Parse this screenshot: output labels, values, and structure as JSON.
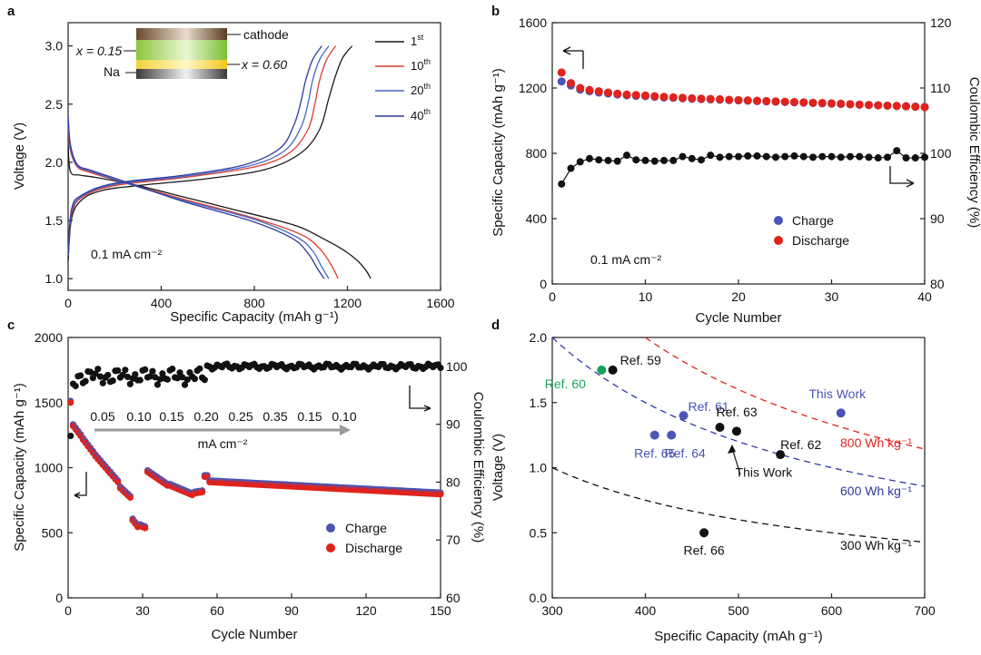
{
  "colors": {
    "first": "#1a1a1a",
    "c10": "#e23a2a",
    "c20": "#4466c4",
    "c40": "#2f3aa0",
    "charge": "#4a55b6",
    "discharge": "#e0231c",
    "ce": "#111111",
    "green": "#1aa25f",
    "gray_arrow": "#9a9a9a"
  },
  "panel_labels": {
    "a": "a",
    "b": "b",
    "c": "c",
    "d": "d"
  },
  "chart_data": [
    {
      "panel": "a",
      "type": "line",
      "xlabel": "Specific Capacity (mAh g⁻¹)",
      "ylabel": "Voltage (V)",
      "xlim": [
        0,
        1600
      ],
      "ylim": [
        0.9,
        3.2
      ],
      "xticks": [
        0,
        400,
        800,
        1200,
        1600
      ],
      "yticks": [
        1.0,
        1.5,
        2.0,
        2.5,
        3.0
      ],
      "annotation": "0.1 mA cm⁻²",
      "inset": {
        "cathode": "cathode",
        "na": "Na",
        "x_left": "x = 0.15",
        "x_right": "x = 0.60"
      },
      "legend": [
        {
          "base": "1",
          "sup": "st"
        },
        {
          "base": "10",
          "sup": "th"
        },
        {
          "base": "20",
          "sup": "th"
        },
        {
          "base": "40",
          "sup": "th"
        }
      ],
      "series": [
        {
          "name": "1st",
          "discharge": [
            [
              0,
              2.15
            ],
            [
              10,
              1.92
            ],
            [
              50,
              1.89
            ],
            [
              120,
              1.87
            ],
            [
              300,
              1.8
            ],
            [
              500,
              1.7
            ],
            [
              700,
              1.6
            ],
            [
              900,
              1.5
            ],
            [
              1000,
              1.44
            ],
            [
              1100,
              1.34
            ],
            [
              1180,
              1.25
            ],
            [
              1240,
              1.16
            ],
            [
              1280,
              1.07
            ],
            [
              1300,
              1.0
            ]
          ],
          "charge": [
            [
              0,
              1.15
            ],
            [
              15,
              1.52
            ],
            [
              60,
              1.68
            ],
            [
              150,
              1.76
            ],
            [
              300,
              1.8
            ],
            [
              600,
              1.86
            ],
            [
              850,
              1.94
            ],
            [
              1000,
              2.08
            ],
            [
              1080,
              2.28
            ],
            [
              1120,
              2.55
            ],
            [
              1150,
              2.75
            ],
            [
              1180,
              2.9
            ],
            [
              1220,
              3.0
            ]
          ]
        },
        {
          "name": "10th",
          "discharge": [
            [
              0,
              2.3
            ],
            [
              10,
              2.1
            ],
            [
              40,
              1.96
            ],
            [
              100,
              1.91
            ],
            [
              250,
              1.82
            ],
            [
              500,
              1.68
            ],
            [
              800,
              1.52
            ],
            [
              1000,
              1.38
            ],
            [
              1080,
              1.26
            ],
            [
              1130,
              1.12
            ],
            [
              1160,
              1.0
            ]
          ],
          "charge": [
            [
              0,
              1.2
            ],
            [
              15,
              1.55
            ],
            [
              60,
              1.7
            ],
            [
              200,
              1.8
            ],
            [
              500,
              1.87
            ],
            [
              800,
              1.96
            ],
            [
              950,
              2.08
            ],
            [
              1030,
              2.28
            ],
            [
              1060,
              2.5
            ],
            [
              1080,
              2.7
            ],
            [
              1110,
              2.88
            ],
            [
              1150,
              3.0
            ]
          ]
        },
        {
          "name": "20th",
          "discharge": [
            [
              0,
              2.35
            ],
            [
              10,
              2.12
            ],
            [
              40,
              1.97
            ],
            [
              100,
              1.92
            ],
            [
              250,
              1.82
            ],
            [
              500,
              1.67
            ],
            [
              800,
              1.51
            ],
            [
              980,
              1.36
            ],
            [
              1050,
              1.24
            ],
            [
              1090,
              1.1
            ],
            [
              1120,
              1.0
            ]
          ],
          "charge": [
            [
              0,
              1.2
            ],
            [
              15,
              1.57
            ],
            [
              60,
              1.71
            ],
            [
              200,
              1.81
            ],
            [
              500,
              1.88
            ],
            [
              780,
              1.97
            ],
            [
              930,
              2.1
            ],
            [
              1000,
              2.3
            ],
            [
              1030,
              2.5
            ],
            [
              1050,
              2.7
            ],
            [
              1080,
              2.88
            ],
            [
              1120,
              3.0
            ]
          ]
        },
        {
          "name": "40th",
          "discharge": [
            [
              0,
              2.4
            ],
            [
              10,
              2.15
            ],
            [
              40,
              1.98
            ],
            [
              100,
              1.93
            ],
            [
              250,
              1.83
            ],
            [
              500,
              1.66
            ],
            [
              780,
              1.5
            ],
            [
              960,
              1.35
            ],
            [
              1030,
              1.22
            ],
            [
              1070,
              1.09
            ],
            [
              1100,
              1.0
            ]
          ],
          "charge": [
            [
              0,
              1.22
            ],
            [
              15,
              1.6
            ],
            [
              60,
              1.72
            ],
            [
              200,
              1.82
            ],
            [
              500,
              1.89
            ],
            [
              760,
              1.98
            ],
            [
              910,
              2.12
            ],
            [
              970,
              2.32
            ],
            [
              1000,
              2.52
            ],
            [
              1020,
              2.7
            ],
            [
              1050,
              2.88
            ],
            [
              1090,
              3.0
            ]
          ]
        }
      ]
    },
    {
      "panel": "b",
      "type": "scatter",
      "xlabel": "Cycle Number",
      "ylabel_left": "Specific Capacity (mAh g⁻¹)",
      "ylabel_right": "Coulombic Efficiency (%)",
      "xlim": [
        0,
        40
      ],
      "ylim_left": [
        0,
        1600
      ],
      "ylim_right": [
        80,
        120
      ],
      "xticks": [
        0,
        10,
        20,
        30,
        40
      ],
      "yticks_left": [
        0,
        400,
        800,
        1200,
        1600
      ],
      "yticks_right": [
        80,
        90,
        100,
        110,
        120
      ],
      "annotation": "0.1 mA cm⁻²",
      "legend": [
        "Charge",
        "Discharge"
      ],
      "series": [
        {
          "name": "Charge",
          "axis": "left",
          "x": [
            1,
            2,
            3,
            4,
            5,
            6,
            7,
            8,
            9,
            10,
            11,
            12,
            13,
            14,
            15,
            16,
            17,
            18,
            19,
            20,
            21,
            22,
            23,
            24,
            25,
            26,
            27,
            28,
            29,
            30,
            31,
            32,
            33,
            34,
            35,
            36,
            37,
            38,
            39,
            40
          ],
          "values": [
            1240,
            1215,
            1190,
            1180,
            1172,
            1166,
            1160,
            1155,
            1152,
            1150,
            1146,
            1142,
            1140,
            1137,
            1134,
            1132,
            1130,
            1128,
            1126,
            1124,
            1122,
            1120,
            1118,
            1116,
            1114,
            1112,
            1110,
            1108,
            1106,
            1104,
            1102,
            1100,
            1098,
            1096,
            1094,
            1092,
            1090,
            1088,
            1086,
            1084
          ]
        },
        {
          "name": "Discharge",
          "axis": "left",
          "x": [
            1,
            2,
            3,
            4,
            5,
            6,
            7,
            8,
            9,
            10,
            11,
            12,
            13,
            14,
            15,
            16,
            17,
            18,
            19,
            20,
            21,
            22,
            23,
            24,
            25,
            26,
            27,
            28,
            29,
            30,
            31,
            32,
            33,
            34,
            35,
            36,
            37,
            38,
            39,
            40
          ],
          "values": [
            1295,
            1230,
            1200,
            1188,
            1180,
            1172,
            1165,
            1160,
            1157,
            1154,
            1150,
            1146,
            1143,
            1140,
            1137,
            1135,
            1133,
            1131,
            1128,
            1126,
            1124,
            1122,
            1120,
            1118,
            1116,
            1114,
            1112,
            1110,
            1108,
            1106,
            1104,
            1101,
            1098,
            1096,
            1094,
            1092,
            1090,
            1088,
            1085,
            1082
          ]
        },
        {
          "name": "Coulombic Efficiency",
          "axis": "right",
          "x": [
            1,
            2,
            3,
            4,
            5,
            6,
            7,
            8,
            9,
            10,
            11,
            12,
            13,
            14,
            15,
            16,
            17,
            18,
            19,
            20,
            21,
            22,
            23,
            24,
            25,
            26,
            27,
            28,
            29,
            30,
            31,
            32,
            33,
            34,
            35,
            36,
            37,
            38,
            39,
            40
          ],
          "values": [
            95.3,
            97.7,
            98.7,
            99.2,
            99.0,
            98.9,
            98.8,
            99.7,
            99.0,
            98.9,
            98.8,
            98.9,
            98.9,
            99.5,
            99.2,
            99.0,
            99.7,
            99.4,
            99.5,
            99.5,
            99.6,
            99.6,
            99.5,
            99.4,
            99.5,
            99.6,
            99.5,
            99.4,
            99.5,
            99.5,
            99.4,
            99.5,
            99.5,
            99.4,
            99.3,
            99.4,
            100.4,
            99.3,
            99.3,
            99.4
          ]
        }
      ]
    },
    {
      "panel": "c",
      "type": "scatter",
      "xlabel": "Cycle Number",
      "ylabel_left": "Specific Capacity (mAh g⁻¹)",
      "ylabel_right": "Coulombic Efficiency (%)",
      "xlim": [
        0,
        150
      ],
      "ylim_left": [
        0,
        2000
      ],
      "ylim_right": [
        60,
        105
      ],
      "xticks": [
        0,
        30,
        60,
        90,
        120,
        150
      ],
      "yticks_left": [
        0,
        500,
        1000,
        1500,
        2000
      ],
      "yticks_right": [
        60,
        70,
        80,
        90,
        100
      ],
      "rate_labels": [
        "0.05",
        "0.10",
        "0.15",
        "0.20",
        "0.25",
        "0.35",
        "0.15",
        "0.10"
      ],
      "rate_unit": "mA cm⁻²",
      "legend": [
        "Charge",
        "Discharge"
      ]
    },
    {
      "panel": "d",
      "type": "scatter",
      "xlabel": "Specific Capacity (mAh g⁻¹)",
      "ylabel": "Voltage (V)",
      "xlim": [
        300,
        700
      ],
      "ylim": [
        0,
        2.0
      ],
      "xticks": [
        300,
        400,
        500,
        600,
        700
      ],
      "yticks": [
        0.0,
        0.5,
        1.0,
        1.5,
        2.0
      ],
      "energy_lines": [
        {
          "label": "800 Wh kg⁻¹",
          "wh": 800,
          "color": "#e0231c"
        },
        {
          "label": "600 Wh kg⁻¹",
          "wh": 600,
          "color": "#2f3aa0"
        },
        {
          "label": "300 Wh kg⁻¹",
          "wh": 300,
          "color": "#111111"
        }
      ],
      "points": [
        {
          "label": "Ref. 59",
          "x": 365,
          "y": 1.75,
          "color": "#111111"
        },
        {
          "label": "Ref. 60",
          "x": 353,
          "y": 1.75,
          "color": "#1aa25f"
        },
        {
          "label": "Ref. 61",
          "x": 441,
          "y": 1.4,
          "color": "#4a55b6"
        },
        {
          "label": "Ref. 63",
          "x": 480,
          "y": 1.31,
          "color": "#111111"
        },
        {
          "label": "Ref. 62",
          "x": 545,
          "y": 1.1,
          "color": "#111111"
        },
        {
          "label": "Ref. 65",
          "x": 410,
          "y": 1.25,
          "color": "#4a55b6"
        },
        {
          "label": "Ref. 64",
          "x": 428,
          "y": 1.25,
          "color": "#4a55b6"
        },
        {
          "label": "This Work",
          "x": 498,
          "y": 1.28,
          "color": "#111111"
        },
        {
          "label": "This Work",
          "x": 610,
          "y": 1.42,
          "color": "#4a55b6"
        },
        {
          "label": "Ref. 66",
          "x": 463,
          "y": 0.5,
          "color": "#111111"
        }
      ]
    }
  ]
}
